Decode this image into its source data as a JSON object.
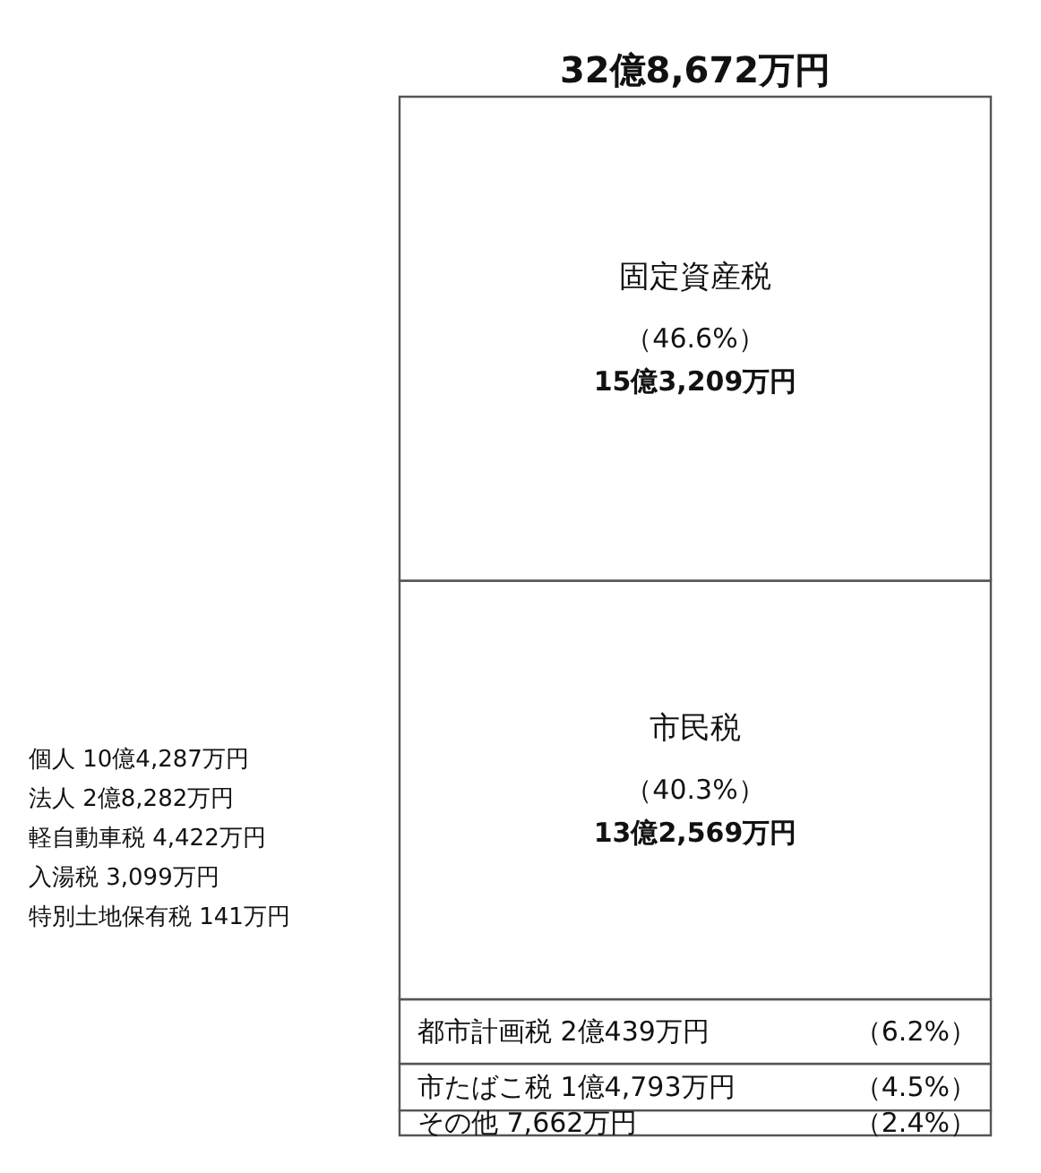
{
  "chart_data": {
    "type": "bar",
    "stacked": true,
    "categories": [
      null
    ],
    "series": [
      {
        "name": "その他",
        "color": "#ffffff",
        "values": [
          2.4
        ],
        "value_labels": [
          "（2.4%）"
        ]
      },
      {
        "name": "市たばこ税",
        "color": "#ffffff",
        "values": [
          4.5
        ],
        "value_labels": [
          "（4.5%）"
        ]
      },
      {
        "name": "都市計画税",
        "color": "#ffffff",
        "values": [
          6.2
        ],
        "value_labels": [
          "（6.2%）"
        ]
      },
      {
        "name": "市民税",
        "color": "#ffffff",
        "values": [
          40.3
        ],
        "value_labels": [
          "（40.3%）"
        ]
      },
      {
        "name": "固定資産税",
        "color": "#ffffff",
        "values": [
          46.6
        ],
        "value_labels": [
          "（46.6%）"
        ]
      }
    ],
    "totals": [
      "32億8,672万円"
    ],
    "annotations": [
      "7,662万円",
      "1億4,793万円",
      "2億439万円",
      "13億2,569万円",
      "15億3,209万円",
      "個人 10億4,287万円",
      "法人 2億8,282万円",
      "軽自動車税 4,422万円",
      "入湯税 3,099万円",
      "特別土地保有税 141万円"
    ]
  }
}
